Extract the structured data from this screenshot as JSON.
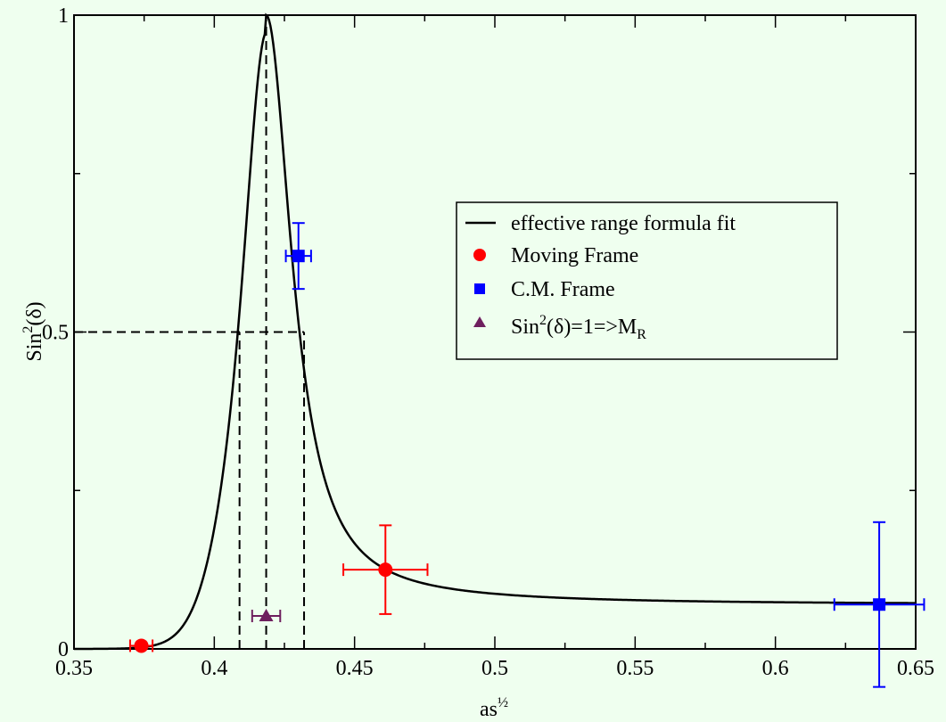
{
  "chart_data": {
    "type": "scatter",
    "xlabel": {
      "main": "as",
      "sup": "½"
    },
    "ylabel": {
      "main": "Sin",
      "sup": "2",
      "rest": "(δ)"
    },
    "xlim": [
      0.35,
      0.65
    ],
    "ylim": [
      0,
      1
    ],
    "x_ticks": [
      {
        "value": 0.35,
        "label": "0.35"
      },
      {
        "value": 0.4,
        "label": "0.4"
      },
      {
        "value": 0.45,
        "label": "0.45"
      },
      {
        "value": 0.5,
        "label": "0.5"
      },
      {
        "value": 0.55,
        "label": "0.55"
      },
      {
        "value": 0.6,
        "label": "0.6"
      },
      {
        "value": 0.65,
        "label": "0.65"
      }
    ],
    "y_ticks": [
      {
        "value": 0,
        "label": "0"
      },
      {
        "value": 0.5,
        "label": "0.5"
      },
      {
        "value": 1,
        "label": "1"
      }
    ],
    "y_minor_ticks": [
      0.25,
      0.75
    ],
    "x_minor_ticks": [
      0.375,
      0.425,
      0.475,
      0.525,
      0.575,
      0.625
    ],
    "grid": false,
    "legend_position": "right-middle",
    "fit_curve": {
      "name": "effective range formula fit",
      "peak_x": 0.4185,
      "half_width": 0.0115,
      "background": 0.07,
      "color": "#000000"
    },
    "guide_lines": {
      "horizontal_y": 0.5,
      "horizontal_x_range": [
        0.35,
        0.432
      ],
      "vertical_x": [
        0.409,
        0.4185,
        0.432
      ],
      "vertical_y_top": [
        0.5,
        1.0,
        0.5
      ]
    },
    "series": [
      {
        "name": "Moving Frame",
        "marker": "circle",
        "color": "#ff0000",
        "points": [
          {
            "x": 0.374,
            "y": 0.005,
            "xerr": 0.004,
            "yerr": 0.0
          },
          {
            "x": 0.461,
            "y": 0.125,
            "xerr": 0.015,
            "yerr": 0.07
          }
        ]
      },
      {
        "name": "C.M. Frame",
        "marker": "square",
        "color": "#0000ff",
        "points": [
          {
            "x": 0.43,
            "y": 0.62,
            "xerr": 0.0045,
            "yerr": 0.052
          },
          {
            "x": 0.637,
            "y": 0.07,
            "xerr": 0.016,
            "yerr": 0.13
          }
        ]
      },
      {
        "name": "Sin2(δ)=1=>MR",
        "label_parts": {
          "a": "Sin",
          "sup": "2",
          "b": "(δ)=1=>M",
          "sub": "R"
        },
        "marker": "triangle",
        "color": "#6e1f5e",
        "points": [
          {
            "x": 0.4185,
            "y": 0.052,
            "xerr": 0.005,
            "yerr": 0.0
          }
        ]
      }
    ]
  }
}
